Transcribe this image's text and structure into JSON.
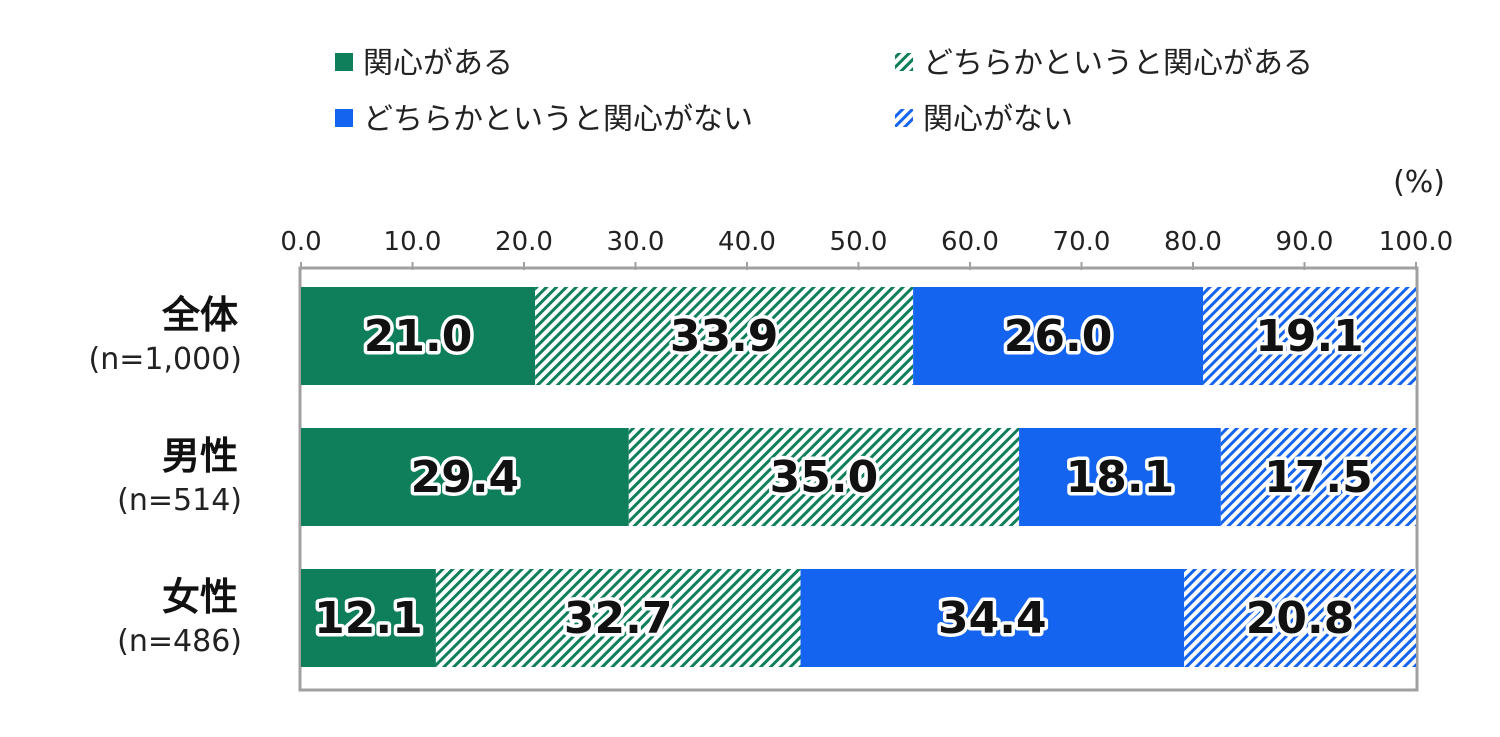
{
  "chart_data": {
    "type": "bar",
    "orientation": "horizontal",
    "stacked": true,
    "unit": "(%)",
    "x_ticks": [
      "0.0",
      "10.0",
      "20.0",
      "30.0",
      "40.0",
      "50.0",
      "60.0",
      "70.0",
      "80.0",
      "90.0",
      "100.0"
    ],
    "xlim": [
      0,
      100
    ],
    "categories": [
      {
        "name": "全体",
        "n": "(n=1,000)"
      },
      {
        "name": "男性",
        "n": "(n=514)"
      },
      {
        "name": "女性",
        "n": "(n=486)"
      }
    ],
    "series": [
      {
        "name": "関心がある",
        "values": [
          21.0,
          29.4,
          12.1
        ],
        "labels": [
          "21.0",
          "29.4",
          "12.1"
        ],
        "color": "#0E7F5A",
        "pattern": "solid"
      },
      {
        "name": "どちらかというと関心がある",
        "values": [
          33.9,
          35.0,
          32.7
        ],
        "labels": [
          "33.9",
          "35.0",
          "32.7"
        ],
        "color": "#0E7F5A",
        "pattern": "hatch"
      },
      {
        "name": "どちらかというと関心がない",
        "values": [
          26.0,
          18.1,
          34.4
        ],
        "labels": [
          "26.0",
          "18.1",
          "34.4"
        ],
        "color": "#1464F0",
        "pattern": "solid"
      },
      {
        "name": "関心がない",
        "values": [
          19.1,
          17.5,
          20.8
        ],
        "labels": [
          "19.1",
          "17.5",
          "20.8"
        ],
        "color": "#1464F0",
        "pattern": "hatch"
      }
    ],
    "legend_position": "top"
  }
}
